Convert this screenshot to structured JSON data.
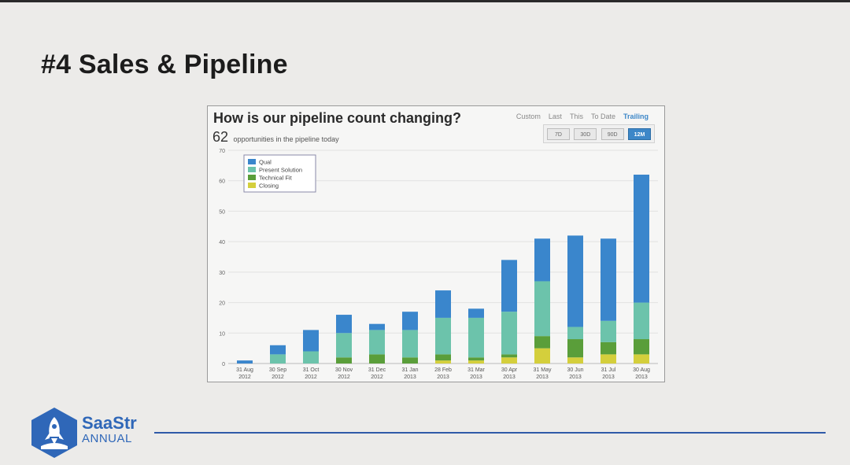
{
  "slide": {
    "title": "#4 Sales & Pipeline"
  },
  "panel": {
    "title": "How is our pipeline count changing?",
    "count": "62",
    "count_label": "opportunities in the pipeline today",
    "period_tabs": [
      "Custom",
      "Last",
      "This",
      "To Date",
      "Trailing"
    ],
    "active_period": "Trailing",
    "range_buttons": [
      "7D",
      "30D",
      "90D",
      "12M"
    ],
    "active_range": "12M"
  },
  "chart_data": {
    "type": "bar",
    "stacked": true,
    "categories": [
      "31 Aug 2012",
      "30 Sep 2012",
      "31 Oct 2012",
      "30 Nov 2012",
      "31 Dec 2012",
      "31 Jan 2013",
      "28 Feb 2013",
      "31 Mar 2013",
      "30 Apr 2013",
      "31 May 2013",
      "30 Jun 2013",
      "31 Jul 2013",
      "30 Aug 2013"
    ],
    "series": [
      {
        "name": "Closing",
        "color": "#d4cf3c",
        "values": [
          0,
          0,
          0,
          0,
          0,
          0,
          1,
          1,
          2,
          5,
          2,
          3,
          3
        ]
      },
      {
        "name": "Technical Fit",
        "color": "#5a9e3a",
        "values": [
          0,
          0,
          0,
          2,
          3,
          2,
          2,
          1,
          1,
          4,
          6,
          4,
          5
        ]
      },
      {
        "name": "Present Solution",
        "color": "#6cc3ab",
        "values": [
          0,
          3,
          4,
          8,
          8,
          9,
          12,
          13,
          14,
          18,
          4,
          7,
          12
        ]
      },
      {
        "name": "Qual",
        "color": "#3a86cc",
        "values": [
          1,
          3,
          7,
          6,
          2,
          6,
          9,
          3,
          17,
          14,
          30,
          27,
          42
        ]
      }
    ],
    "legend_order": [
      "Qual",
      "Present Solution",
      "Technical Fit",
      "Closing"
    ],
    "ylim": [
      0,
      70
    ],
    "yticks": [
      0,
      10,
      20,
      30,
      40,
      50,
      60,
      70
    ],
    "grid": true,
    "legend_position": "top-left"
  },
  "brand": {
    "name": "SaaStr",
    "sub": "ANNUAL",
    "color": "#2f67b8"
  }
}
